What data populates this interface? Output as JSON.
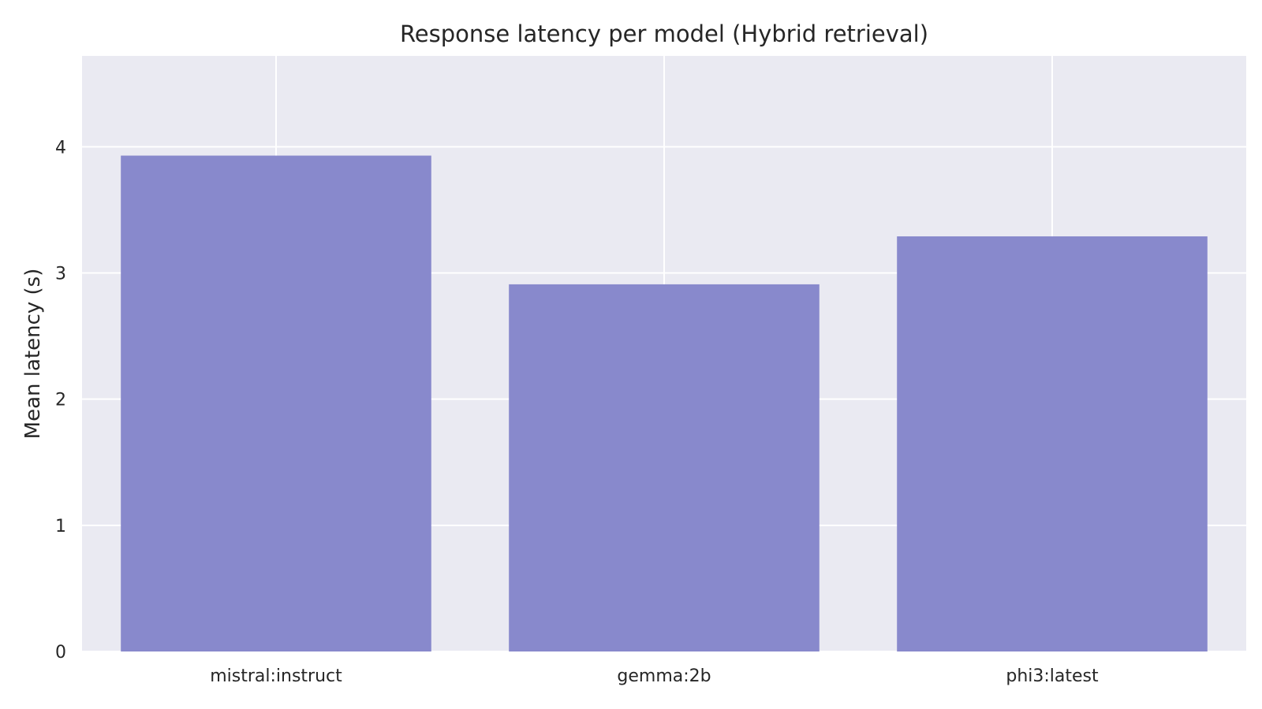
{
  "chart_data": {
    "type": "bar",
    "title": "Response latency per model (Hybrid retrieval)",
    "xlabel": "",
    "ylabel": "Mean latency (s)",
    "categories": [
      "mistral:instruct",
      "gemma:2b",
      "phi3:latest"
    ],
    "values": [
      3.93,
      2.91,
      3.29
    ],
    "ylim": [
      0,
      4.72
    ],
    "yticks": [
      0,
      1,
      2,
      3,
      4
    ],
    "grid": true,
    "colors": {
      "bar": "#8889CC",
      "plot_background": "#EAEAF2",
      "grid": "#FFFFFF",
      "text": "#262626"
    }
  }
}
